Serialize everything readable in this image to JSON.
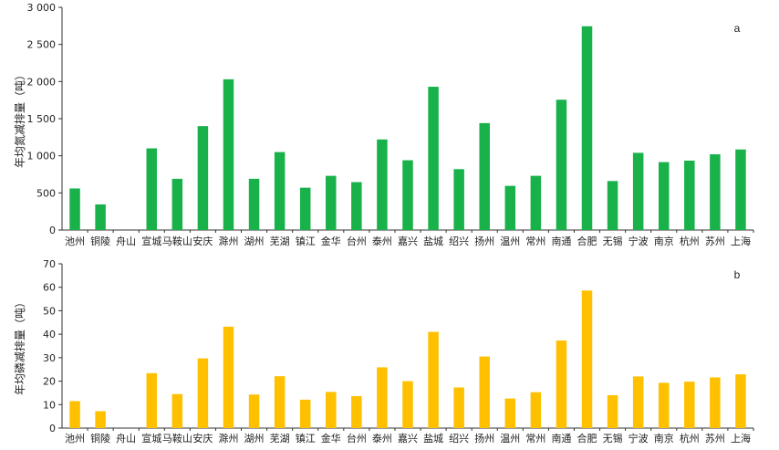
{
  "chart_data": [
    {
      "type": "bar",
      "panel_label": "a",
      "ylabel": "年均氮减排量（吨）",
      "ylim": [
        0,
        3000
      ],
      "yticks": [
        0,
        500,
        1000,
        1500,
        2000,
        2500,
        3000
      ],
      "ytick_labels": [
        "0",
        "500",
        "1 000",
        "1 500",
        "2 000",
        "2 500",
        "3 000"
      ],
      "color": "#19B14A",
      "categories": [
        "池州",
        "铜陵",
        "舟山",
        "宣城",
        "马鞍山",
        "安庆",
        "滁州",
        "湖州",
        "芜湖",
        "镇江",
        "金华",
        "台州",
        "泰州",
        "嘉兴",
        "盐城",
        "绍兴",
        "扬州",
        "温州",
        "常州",
        "南通",
        "合肥",
        "无锡",
        "宁波",
        "南京",
        "杭州",
        "苏州",
        "上海"
      ],
      "values": [
        560,
        345,
        0,
        1100,
        690,
        1400,
        2030,
        690,
        1050,
        570,
        730,
        645,
        1220,
        940,
        1930,
        820,
        1440,
        595,
        730,
        1755,
        2745,
        660,
        1040,
        915,
        935,
        1020,
        1085
      ]
    },
    {
      "type": "bar",
      "panel_label": "b",
      "ylabel": "年均磷减排量（吨）",
      "ylim": [
        0,
        70
      ],
      "yticks": [
        0,
        10,
        20,
        30,
        40,
        50,
        60,
        70
      ],
      "ytick_labels": [
        "0",
        "10",
        "20",
        "30",
        "40",
        "50",
        "60",
        "70"
      ],
      "color": "#FFC000",
      "categories": [
        "池州",
        "铜陵",
        "舟山",
        "宣城",
        "马鞍山",
        "安庆",
        "滁州",
        "湖州",
        "芜湖",
        "镇江",
        "金华",
        "台州",
        "泰州",
        "嘉兴",
        "盐城",
        "绍兴",
        "扬州",
        "温州",
        "常州",
        "南通",
        "合肥",
        "无锡",
        "宁波",
        "南京",
        "杭州",
        "苏州",
        "上海"
      ],
      "values": [
        11.5,
        7.2,
        0,
        23.4,
        14.5,
        29.7,
        43.2,
        14.3,
        22.1,
        12.1,
        15.4,
        13.6,
        25.9,
        20.0,
        41.0,
        17.3,
        30.5,
        12.6,
        15.3,
        37.3,
        58.6,
        14.0,
        22.0,
        19.3,
        19.8,
        21.6,
        22.9
      ]
    }
  ]
}
